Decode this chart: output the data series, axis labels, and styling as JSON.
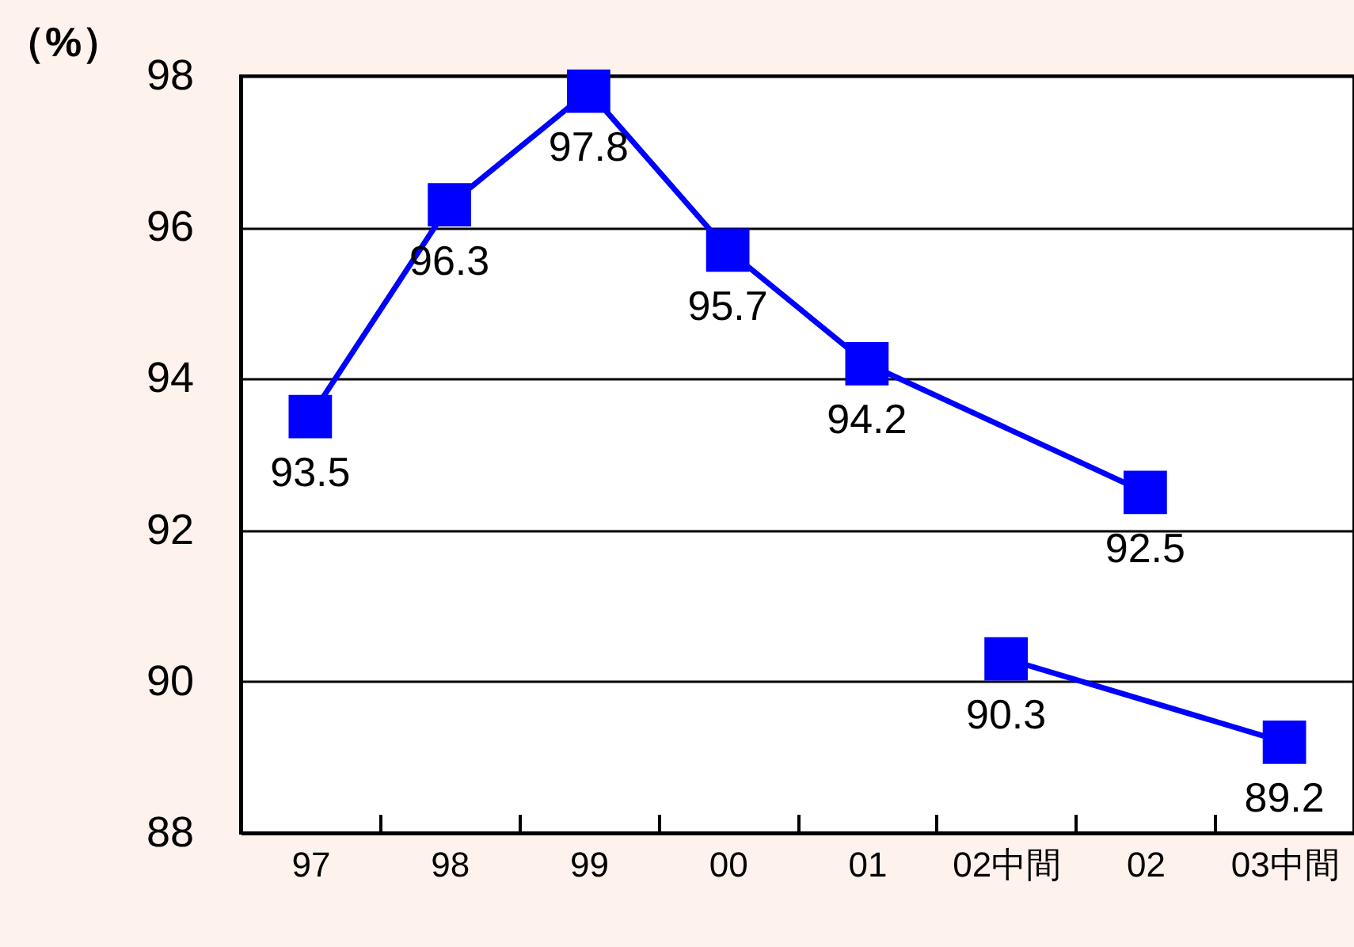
{
  "chart_data": {
    "type": "line",
    "ylabel": "（%）",
    "categories": [
      "97",
      "98",
      "99",
      "00",
      "01",
      "02中間",
      "02",
      "03中間"
    ],
    "ylim": [
      88,
      98
    ],
    "yticks": [
      88,
      90,
      92,
      94,
      96,
      98
    ],
    "grid": "y",
    "marker": "square",
    "line_style": "solid",
    "data_labels": true,
    "series": [
      {
        "color": "#0000ff",
        "values": [
          93.5,
          96.3,
          97.8,
          95.7,
          94.2,
          null,
          92.5,
          null
        ]
      },
      {
        "color": "#0000ff",
        "values": [
          null,
          null,
          null,
          null,
          null,
          90.3,
          null,
          89.2
        ]
      }
    ]
  }
}
